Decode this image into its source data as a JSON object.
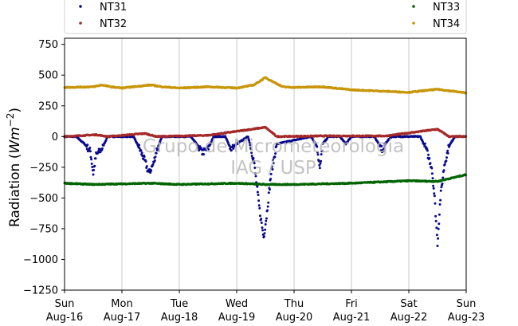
{
  "chart_data": {
    "type": "scatter",
    "title": "",
    "ylabel_main": "Radiation (",
    "ylabel_unit": "Wm",
    "ylabel_exp": "−2",
    "ylabel_close": ")",
    "ylim": [
      -1250,
      800
    ],
    "yticks": [
      "750",
      "500",
      "250",
      "0",
      "−250",
      "−500",
      "−750",
      "−1000",
      "−1250"
    ],
    "yticks_values": [
      750,
      500,
      250,
      0,
      -250,
      -500,
      -750,
      -1000,
      -1250
    ],
    "xlim_days": [
      0,
      7
    ],
    "xticks": [
      {
        "day": "Sun",
        "date": "Aug-16"
      },
      {
        "day": "Mon",
        "date": "Aug-17"
      },
      {
        "day": "Tue",
        "date": "Aug-18"
      },
      {
        "day": "Wed",
        "date": "Aug-19"
      },
      {
        "day": "Thu",
        "date": "Aug-20"
      },
      {
        "day": "Fri",
        "date": "Aug-21"
      },
      {
        "day": "Sat",
        "date": "Aug-22"
      },
      {
        "day": "Sun",
        "date": "Aug-23"
      }
    ],
    "grid": "vertical",
    "legend_position": "top",
    "watermark": [
      "Grupo de Micrometeorologia",
      "IAG / USP"
    ],
    "series": [
      {
        "name": "NT31",
        "color": "#0a0a8c",
        "description_points": [
          [
            0.0,
            0
          ],
          [
            0.2,
            0
          ],
          [
            0.35,
            -60
          ],
          [
            0.45,
            -120
          ],
          [
            0.5,
            -300
          ],
          [
            0.55,
            -150
          ],
          [
            0.65,
            -100
          ],
          [
            0.75,
            0
          ],
          [
            1.0,
            0
          ],
          [
            1.2,
            0
          ],
          [
            1.3,
            -90
          ],
          [
            1.4,
            -200
          ],
          [
            1.47,
            -300
          ],
          [
            1.55,
            -220
          ],
          [
            1.6,
            -120
          ],
          [
            1.7,
            0
          ],
          [
            2.2,
            0
          ],
          [
            2.3,
            -60
          ],
          [
            2.4,
            -130
          ],
          [
            2.5,
            -100
          ],
          [
            2.6,
            0
          ],
          [
            2.8,
            0
          ],
          [
            2.9,
            -100
          ],
          [
            3.0,
            -60
          ],
          [
            3.2,
            0
          ],
          [
            3.3,
            -200
          ],
          [
            3.4,
            -600
          ],
          [
            3.47,
            -820
          ],
          [
            3.52,
            -650
          ],
          [
            3.6,
            -300
          ],
          [
            3.7,
            -60
          ],
          [
            4.3,
            0
          ],
          [
            4.4,
            -80
          ],
          [
            4.45,
            -270
          ],
          [
            4.5,
            -60
          ],
          [
            4.6,
            0
          ],
          [
            4.8,
            0
          ],
          [
            4.9,
            -60
          ],
          [
            5.0,
            0
          ],
          [
            5.4,
            0
          ],
          [
            5.5,
            -80
          ],
          [
            5.55,
            -120
          ],
          [
            5.6,
            -50
          ],
          [
            5.7,
            0
          ],
          [
            6.2,
            0
          ],
          [
            6.3,
            -100
          ],
          [
            6.4,
            -250
          ],
          [
            6.45,
            -500
          ],
          [
            6.5,
            -870
          ],
          [
            6.55,
            -500
          ],
          [
            6.62,
            -230
          ],
          [
            6.7,
            -80
          ],
          [
            6.8,
            0
          ],
          [
            7.0,
            0
          ]
        ]
      },
      {
        "name": "NT32",
        "color": "#a52a2a",
        "description_points": [
          [
            0.0,
            0
          ],
          [
            0.55,
            15
          ],
          [
            0.75,
            0
          ],
          [
            1.4,
            25
          ],
          [
            1.6,
            0
          ],
          [
            2.5,
            10
          ],
          [
            3.5,
            75
          ],
          [
            3.7,
            0
          ],
          [
            4.5,
            5
          ],
          [
            5.6,
            5
          ],
          [
            6.5,
            60
          ],
          [
            6.7,
            0
          ],
          [
            7.0,
            0
          ]
        ]
      },
      {
        "name": "NT33",
        "color": "#006400",
        "description_points": [
          [
            0.0,
            -380
          ],
          [
            0.5,
            -390
          ],
          [
            1.0,
            -385
          ],
          [
            1.5,
            -380
          ],
          [
            2.0,
            -390
          ],
          [
            2.5,
            -385
          ],
          [
            3.0,
            -380
          ],
          [
            3.5,
            -390
          ],
          [
            4.0,
            -390
          ],
          [
            4.5,
            -385
          ],
          [
            5.0,
            -380
          ],
          [
            5.5,
            -370
          ],
          [
            6.0,
            -360
          ],
          [
            6.5,
            -365
          ],
          [
            7.0,
            -310
          ]
        ]
      },
      {
        "name": "NT34",
        "color": "#c8960a",
        "description_points": [
          [
            0.0,
            400
          ],
          [
            0.5,
            405
          ],
          [
            0.65,
            420
          ],
          [
            0.8,
            405
          ],
          [
            1.0,
            395
          ],
          [
            1.5,
            420
          ],
          [
            1.7,
            405
          ],
          [
            2.0,
            395
          ],
          [
            2.5,
            405
          ],
          [
            3.0,
            395
          ],
          [
            3.3,
            420
          ],
          [
            3.5,
            480
          ],
          [
            3.6,
            455
          ],
          [
            3.8,
            405
          ],
          [
            4.0,
            400
          ],
          [
            4.5,
            405
          ],
          [
            5.0,
            380
          ],
          [
            5.5,
            370
          ],
          [
            6.0,
            360
          ],
          [
            6.5,
            385
          ],
          [
            7.0,
            355
          ]
        ]
      }
    ]
  }
}
